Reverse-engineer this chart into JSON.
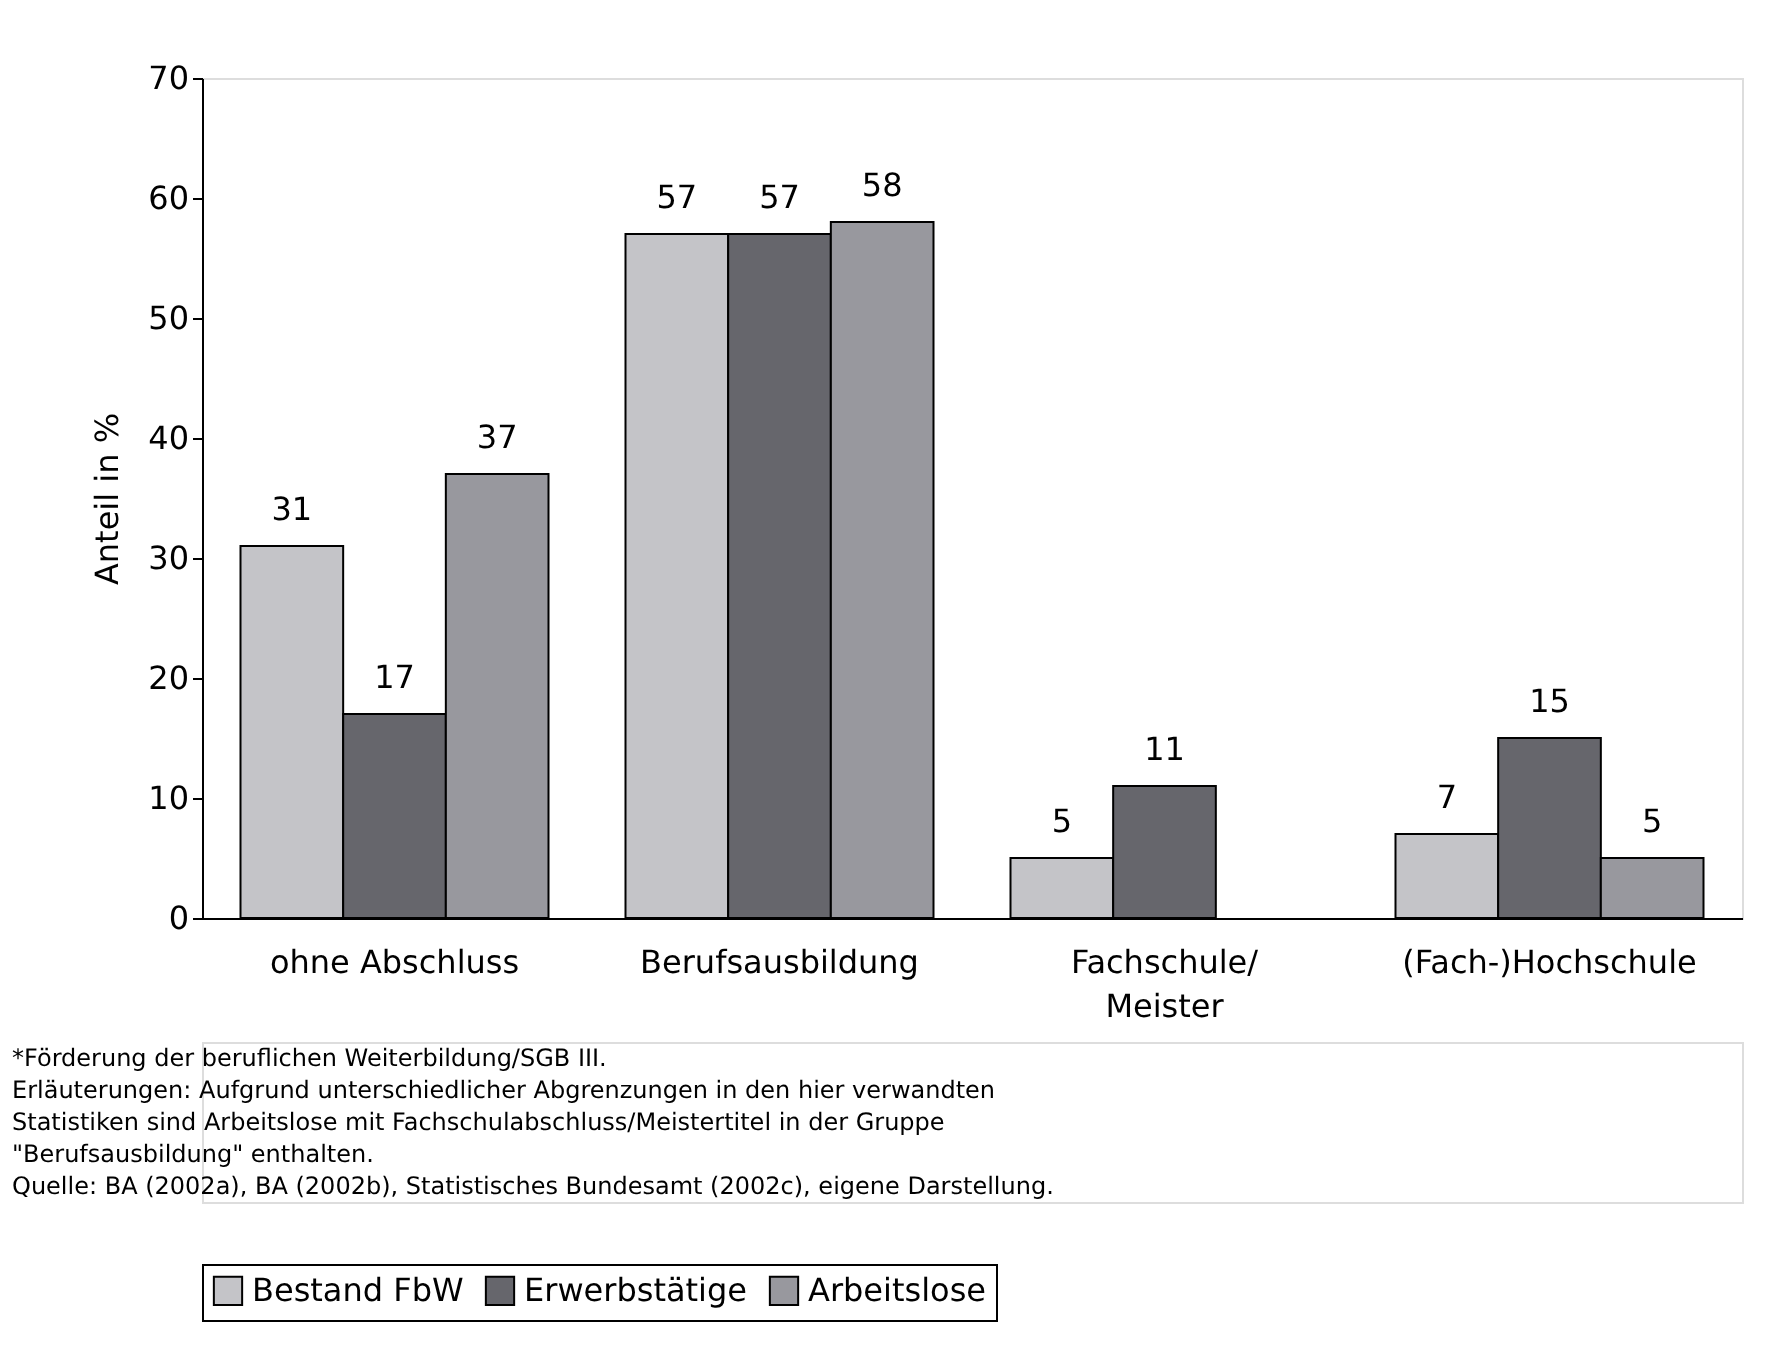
{
  "chart_data": {
    "type": "bar",
    "ylabel": "Anteil in %",
    "categories": [
      "ohne Abschluss",
      "Berufsausbildung",
      "Fachschule/\nMeister",
      "(Fach-)Hochschule"
    ],
    "series": [
      {
        "name": "Bestand FbW",
        "color": "#c4c4c8",
        "values": [
          31,
          57,
          5,
          7
        ]
      },
      {
        "name": "Erwerbstätige",
        "color": "#66666c",
        "values": [
          17,
          57,
          11,
          15
        ]
      },
      {
        "name": "Arbeitslose",
        "color": "#98989e",
        "values": [
          37,
          58,
          null,
          5
        ]
      }
    ],
    "ylim": [
      0,
      70
    ],
    "yticks": [
      0,
      10,
      20,
      30,
      40,
      50,
      60,
      70
    ],
    "grid": false,
    "legend": "bottom",
    "data_labels": true,
    "annotations": [
      "*Förderung der beruflichen Weiterbildung/SGB III.",
      "Erläuterungen: Aufgrund unterschiedlicher Abgrenzungen in den hier verwandten",
      "Statistiken sind Arbeitslose mit Fachschulabschluss/Meistertitel in der Gruppe",
      "\"Berufsausbildung\" enthalten.",
      "Quelle: BA (2002a), BA (2002b), Statistisches Bundesamt (2002c), eigene Darstellung."
    ]
  }
}
